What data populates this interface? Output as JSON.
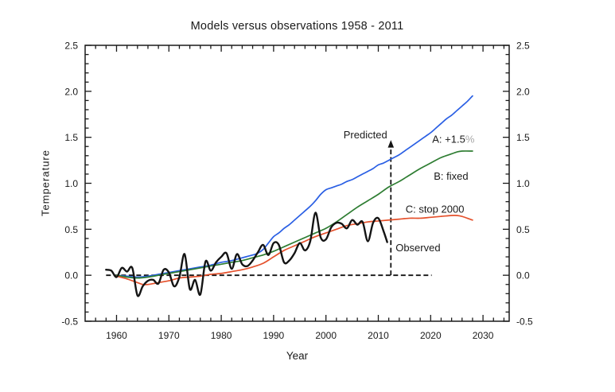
{
  "page": {
    "background": "#ffffff"
  },
  "chart_data": {
    "type": "line",
    "title": "Models versus observations 1958 - 2011",
    "xlabel": "Year",
    "ylabel": "Temperature",
    "xlim": [
      1954,
      2035
    ],
    "ylim": [
      -0.5,
      2.5
    ],
    "xticks": [
      1960,
      1970,
      1980,
      1990,
      2000,
      2010,
      2020,
      2030
    ],
    "yticks": [
      -0.5,
      0.0,
      0.5,
      1.0,
      1.5,
      2.0,
      2.5
    ],
    "x_minor_step": 2,
    "y_minor_step": 0.1,
    "grid": false,
    "right_axis_labels": true,
    "frame_color": "#1a1a1a",
    "series": [
      {
        "name": "scenario-a",
        "label": "A: +1.5%",
        "color": "#2a5fe4",
        "width": 1.7,
        "points": [
          [
            1960,
            0.0
          ],
          [
            1962,
            -0.01
          ],
          [
            1964,
            -0.02
          ],
          [
            1966,
            -0.01
          ],
          [
            1968,
            0.01
          ],
          [
            1970,
            0.03
          ],
          [
            1972,
            0.05
          ],
          [
            1974,
            0.07
          ],
          [
            1976,
            0.09
          ],
          [
            1978,
            0.11
          ],
          [
            1980,
            0.14
          ],
          [
            1982,
            0.16
          ],
          [
            1984,
            0.19
          ],
          [
            1986,
            0.22
          ],
          [
            1987,
            0.24
          ],
          [
            1988,
            0.28
          ],
          [
            1989,
            0.35
          ],
          [
            1990,
            0.42
          ],
          [
            1991,
            0.46
          ],
          [
            1992,
            0.51
          ],
          [
            1993,
            0.55
          ],
          [
            1994,
            0.6
          ],
          [
            1995,
            0.65
          ],
          [
            1996,
            0.7
          ],
          [
            1997,
            0.75
          ],
          [
            1998,
            0.81
          ],
          [
            1999,
            0.88
          ],
          [
            2000,
            0.93
          ],
          [
            2001,
            0.95
          ],
          [
            2002,
            0.97
          ],
          [
            2003,
            0.99
          ],
          [
            2004,
            1.02
          ],
          [
            2005,
            1.04
          ],
          [
            2006,
            1.07
          ],
          [
            2007,
            1.1
          ],
          [
            2008,
            1.13
          ],
          [
            2009,
            1.16
          ],
          [
            2010,
            1.2
          ],
          [
            2011,
            1.22
          ],
          [
            2012,
            1.25
          ],
          [
            2013,
            1.28
          ],
          [
            2014,
            1.31
          ],
          [
            2015,
            1.35
          ],
          [
            2016,
            1.39
          ],
          [
            2017,
            1.43
          ],
          [
            2018,
            1.47
          ],
          [
            2019,
            1.51
          ],
          [
            2020,
            1.55
          ],
          [
            2021,
            1.6
          ],
          [
            2022,
            1.65
          ],
          [
            2023,
            1.7
          ],
          [
            2024,
            1.74
          ],
          [
            2025,
            1.79
          ],
          [
            2026,
            1.84
          ],
          [
            2027,
            1.89
          ],
          [
            2028,
            1.95
          ]
        ]
      },
      {
        "name": "scenario-b",
        "label": "B: fixed",
        "color": "#2e7d32",
        "width": 1.7,
        "points": [
          [
            1960,
            0.0
          ],
          [
            1962,
            -0.02
          ],
          [
            1964,
            -0.03
          ],
          [
            1966,
            -0.02
          ],
          [
            1968,
            0.0
          ],
          [
            1970,
            0.02
          ],
          [
            1972,
            0.04
          ],
          [
            1974,
            0.06
          ],
          [
            1976,
            0.08
          ],
          [
            1978,
            0.1
          ],
          [
            1980,
            0.12
          ],
          [
            1982,
            0.14
          ],
          [
            1984,
            0.16
          ],
          [
            1986,
            0.19
          ],
          [
            1988,
            0.22
          ],
          [
            1990,
            0.26
          ],
          [
            1992,
            0.31
          ],
          [
            1994,
            0.36
          ],
          [
            1996,
            0.41
          ],
          [
            1998,
            0.46
          ],
          [
            2000,
            0.51
          ],
          [
            2002,
            0.58
          ],
          [
            2004,
            0.66
          ],
          [
            2006,
            0.74
          ],
          [
            2008,
            0.81
          ],
          [
            2010,
            0.88
          ],
          [
            2012,
            0.96
          ],
          [
            2014,
            1.02
          ],
          [
            2016,
            1.09
          ],
          [
            2018,
            1.16
          ],
          [
            2020,
            1.22
          ],
          [
            2022,
            1.28
          ],
          [
            2024,
            1.32
          ],
          [
            2025,
            1.34
          ],
          [
            2026,
            1.35
          ],
          [
            2028,
            1.35
          ]
        ]
      },
      {
        "name": "scenario-c",
        "label": "C: stop 2000",
        "color": "#e5512c",
        "width": 1.7,
        "points": [
          [
            1960,
            -0.01
          ],
          [
            1962,
            -0.04
          ],
          [
            1964,
            -0.08
          ],
          [
            1965,
            -0.1
          ],
          [
            1966,
            -0.1
          ],
          [
            1968,
            -0.08
          ],
          [
            1970,
            -0.06
          ],
          [
            1972,
            -0.03
          ],
          [
            1974,
            -0.02
          ],
          [
            1976,
            -0.01
          ],
          [
            1978,
            0.01
          ],
          [
            1980,
            0.02
          ],
          [
            1982,
            0.04
          ],
          [
            1984,
            0.06
          ],
          [
            1986,
            0.09
          ],
          [
            1988,
            0.13
          ],
          [
            1990,
            0.2
          ],
          [
            1992,
            0.27
          ],
          [
            1994,
            0.32
          ],
          [
            1996,
            0.37
          ],
          [
            1998,
            0.42
          ],
          [
            2000,
            0.46
          ],
          [
            2002,
            0.5
          ],
          [
            2004,
            0.54
          ],
          [
            2006,
            0.56
          ],
          [
            2008,
            0.58
          ],
          [
            2010,
            0.59
          ],
          [
            2012,
            0.6
          ],
          [
            2014,
            0.61
          ],
          [
            2016,
            0.62
          ],
          [
            2018,
            0.62
          ],
          [
            2020,
            0.63
          ],
          [
            2022,
            0.64
          ],
          [
            2024,
            0.65
          ],
          [
            2025,
            0.65
          ],
          [
            2026,
            0.64
          ],
          [
            2027,
            0.62
          ],
          [
            2028,
            0.6
          ]
        ]
      },
      {
        "name": "observed",
        "label": "Observed",
        "color": "#141414",
        "width": 2.4,
        "points": [
          [
            1958,
            0.06
          ],
          [
            1959,
            0.05
          ],
          [
            1960,
            -0.02
          ],
          [
            1961,
            0.08
          ],
          [
            1962,
            0.04
          ],
          [
            1963,
            0.08
          ],
          [
            1964,
            -0.22
          ],
          [
            1965,
            -0.12
          ],
          [
            1966,
            -0.06
          ],
          [
            1967,
            -0.05
          ],
          [
            1968,
            -0.09
          ],
          [
            1969,
            0.06
          ],
          [
            1970,
            0.03
          ],
          [
            1971,
            -0.12
          ],
          [
            1972,
            -0.02
          ],
          [
            1973,
            0.23
          ],
          [
            1974,
            -0.15
          ],
          [
            1975,
            -0.05
          ],
          [
            1976,
            -0.21
          ],
          [
            1977,
            0.15
          ],
          [
            1978,
            0.05
          ],
          [
            1979,
            0.14
          ],
          [
            1980,
            0.2
          ],
          [
            1981,
            0.24
          ],
          [
            1982,
            0.07
          ],
          [
            1983,
            0.23
          ],
          [
            1984,
            0.12
          ],
          [
            1985,
            0.1
          ],
          [
            1986,
            0.16
          ],
          [
            1987,
            0.25
          ],
          [
            1988,
            0.33
          ],
          [
            1989,
            0.22
          ],
          [
            1990,
            0.35
          ],
          [
            1991,
            0.33
          ],
          [
            1992,
            0.14
          ],
          [
            1993,
            0.16
          ],
          [
            1994,
            0.24
          ],
          [
            1995,
            0.35
          ],
          [
            1996,
            0.27
          ],
          [
            1997,
            0.37
          ],
          [
            1998,
            0.68
          ],
          [
            1999,
            0.41
          ],
          [
            2000,
            0.39
          ],
          [
            2001,
            0.52
          ],
          [
            2002,
            0.57
          ],
          [
            2003,
            0.56
          ],
          [
            2004,
            0.51
          ],
          [
            2005,
            0.6
          ],
          [
            2006,
            0.55
          ],
          [
            2007,
            0.58
          ],
          [
            2008,
            0.37
          ],
          [
            2009,
            0.57
          ],
          [
            2010,
            0.62
          ],
          [
            2011,
            0.48
          ],
          [
            2011.7,
            0.36
          ]
        ]
      }
    ],
    "reference_lines": [
      {
        "name": "zero-baseline",
        "orientation": "horizontal",
        "y": 0.0,
        "x_from": 1958,
        "x_to": 2020.2,
        "style": "dashed",
        "color": "#141414",
        "width": 1.8
      },
      {
        "name": "predicted-arrow",
        "orientation": "vertical",
        "x": 2012.4,
        "y_from": 0.0,
        "y_to": 1.47,
        "style": "dashed-arrow",
        "color": "#141414",
        "width": 1.8
      }
    ],
    "annotations": [
      {
        "name": "predicted",
        "parts": [
          {
            "text": "Predicted",
            "color": "#1a1a1a"
          }
        ],
        "x": 2011.7,
        "y": 1.49,
        "anchor": "end"
      },
      {
        "name": "scenario-a-label",
        "parts": [
          {
            "text": "A: +1.5",
            "color": "#1a1a1a"
          },
          {
            "text": "%",
            "color": "#a9a9a9"
          }
        ],
        "x": 2020.3,
        "y": 1.44,
        "anchor": "start"
      },
      {
        "name": "scenario-b-label",
        "parts": [
          {
            "text": "B: fixed",
            "color": "#1a1a1a"
          }
        ],
        "x": 2020.6,
        "y": 1.04,
        "anchor": "start"
      },
      {
        "name": "scenario-c-label",
        "parts": [
          {
            "text": "C: stop 2000",
            "color": "#1a1a1a"
          }
        ],
        "x": 2015.2,
        "y": 0.68,
        "anchor": "start"
      },
      {
        "name": "observed-label",
        "parts": [
          {
            "text": "Observed",
            "color": "#1a1a1a"
          }
        ],
        "x": 2013.3,
        "y": 0.26,
        "anchor": "start"
      }
    ]
  }
}
